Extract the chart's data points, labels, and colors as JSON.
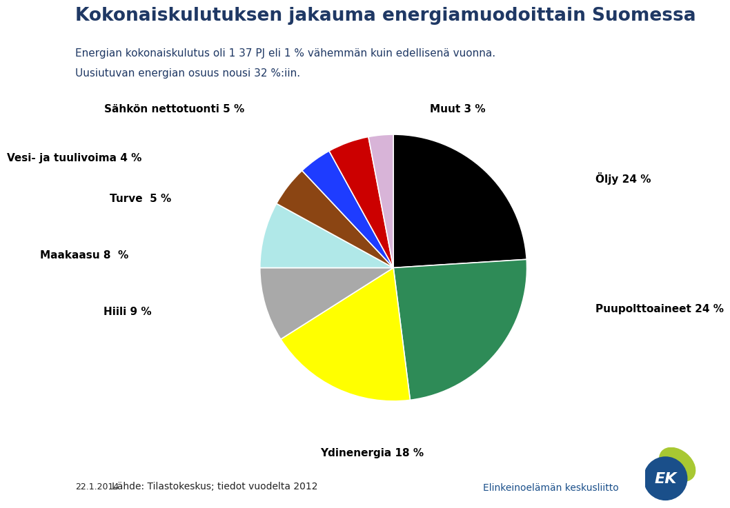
{
  "title": "Kokonaiskulutuksen jakauma energiamuodoittain Suomessa",
  "subtitle_line1": "Energian kokonaiskulutus oli 1 37 PJ eli 1 % vähemmän kuin edellisenä vuonna.",
  "subtitle_line2": "Uusiutuvan energian osuus nousi 32 %:iin.",
  "slices": [
    {
      "label": "Öljy 24 %",
      "value": 24,
      "color": "#000000"
    },
    {
      "label": "Puupolttoaineet 24 %",
      "value": 24,
      "color": "#2e8b57"
    },
    {
      "label": "Ydinenergia 18 %",
      "value": 18,
      "color": "#ffff00"
    },
    {
      "label": "Hiili 9 %",
      "value": 9,
      "color": "#a9a9a9"
    },
    {
      "label": "Maakaasu 8  %",
      "value": 8,
      "color": "#b0e8e8"
    },
    {
      "label": "Turve  5 %",
      "value": 5,
      "color": "#8b4513"
    },
    {
      "label": "Vesi- ja tuulivoima 4 %",
      "value": 4,
      "color": "#1e3cff"
    },
    {
      "label": "Sähkön nettotuonti 5 %",
      "value": 5,
      "color": "#cc0000"
    },
    {
      "label": "Muut 3 %",
      "value": 3,
      "color": "#d8b4d8"
    }
  ],
  "footer_left": "22.1.2014",
  "footer_source": "Lähde: Tilastokeskus; tiedot vuodelta 2012",
  "footer_right": "Elinkeinoelämän keskusliitto",
  "title_color": "#1f3864",
  "subtitle_color": "#1f3864",
  "label_color": "#000000",
  "background_color": "#ffffff",
  "startangle": 90
}
